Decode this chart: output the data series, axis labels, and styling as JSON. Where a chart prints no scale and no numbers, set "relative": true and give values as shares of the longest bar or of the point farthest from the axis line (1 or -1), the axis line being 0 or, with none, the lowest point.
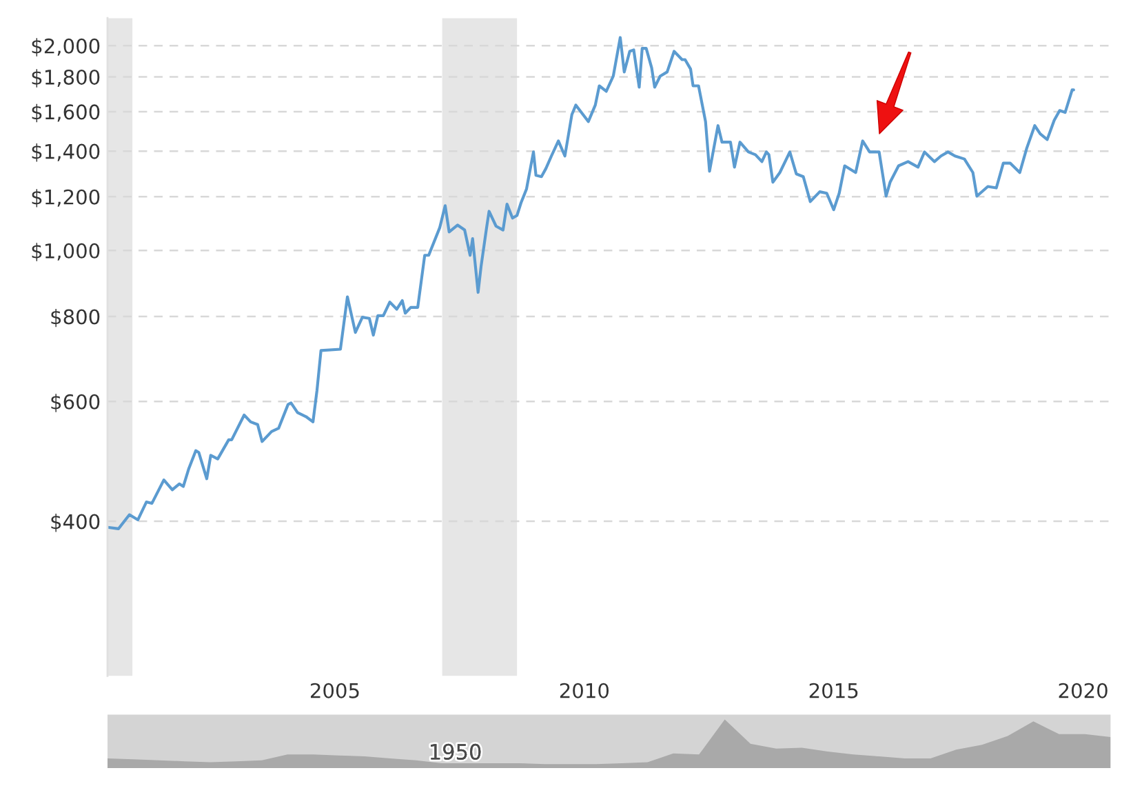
{
  "chart_data": [
    {
      "type": "line",
      "xlim": [
        2000.44,
        2020.55
      ],
      "ylim": [
        237,
        2196
      ],
      "log": "y",
      "grid": "y",
      "line_style": "solid",
      "marker": "none",
      "xticks": [
        2005,
        2010,
        2015,
        2020
      ],
      "yticks": [
        {
          "value": 400,
          "label": "$400"
        },
        {
          "value": 600,
          "label": "$600"
        },
        {
          "value": 800,
          "label": "$800"
        },
        {
          "value": 1000,
          "label": "$1,000"
        },
        {
          "value": 1200,
          "label": "$1,200"
        },
        {
          "value": 1400,
          "label": "$1,400"
        },
        {
          "value": 1600,
          "label": "$1,600"
        },
        {
          "value": 1800,
          "label": "$1,800"
        },
        {
          "value": 2000,
          "label": "$2,000"
        }
      ],
      "bands": [
        {
          "axis": "x",
          "from": 2000.44,
          "to": 2000.94,
          "color": "#e6e6e6"
        },
        {
          "axis": "x",
          "from": 2007.15,
          "to": 2008.65,
          "color": "#e6e6e6"
        }
      ],
      "series": [
        {
          "color": "#5b9bd0",
          "x": [
            2000.44,
            2000.66,
            2000.88,
            2001.05,
            2001.22,
            2001.33,
            2001.57,
            2001.74,
            2001.88,
            2001.96,
            2002.07,
            2002.21,
            2002.27,
            2002.43,
            2002.51,
            2002.65,
            2002.87,
            2002.93,
            2003.18,
            2003.31,
            2003.45,
            2003.54,
            2003.73,
            2003.87,
            2004.06,
            2004.12,
            2004.25,
            2004.42,
            2004.56,
            2004.64,
            2004.72,
            2005.11,
            2005.25,
            2005.41,
            2005.55,
            2005.69,
            2005.77,
            2005.86,
            2005.97,
            2006.1,
            2006.24,
            2006.35,
            2006.41,
            2006.52,
            2006.66,
            2006.8,
            2006.88,
            2007.1,
            2007.21,
            2007.29,
            2007.46,
            2007.6,
            2007.71,
            2007.76,
            2007.87,
            2007.93,
            2008.04,
            2008.09,
            2008.23,
            2008.37,
            2008.45,
            2008.56,
            2008.65,
            2008.73,
            2008.84,
            2008.98,
            2009.03,
            2009.14,
            2009.23,
            2009.34,
            2009.48,
            2009.61,
            2009.75,
            2009.83,
            2010.08,
            2010.22,
            2010.3,
            2010.44,
            2010.58,
            2010.72,
            2010.8,
            2010.91,
            2010.99,
            2011.1,
            2011.16,
            2011.24,
            2011.35,
            2011.41,
            2011.52,
            2011.66,
            2011.8,
            2011.96,
            2012.02,
            2012.13,
            2012.18,
            2012.29,
            2012.43,
            2012.51,
            2012.68,
            2012.76,
            2012.93,
            2013.01,
            2013.12,
            2013.29,
            2013.43,
            2013.56,
            2013.65,
            2013.7,
            2013.78,
            2013.92,
            2014.12,
            2014.25,
            2014.39,
            2014.53,
            2014.72,
            2014.86,
            2015.0,
            2015.11,
            2015.22,
            2015.44,
            2015.58,
            2015.72,
            2015.91,
            2016.05,
            2016.13,
            2016.3,
            2016.49,
            2016.69,
            2016.82,
            2017.02,
            2017.15,
            2017.29,
            2017.43,
            2017.62,
            2017.79,
            2017.87,
            2018.09,
            2018.26,
            2018.4,
            2018.54,
            2018.73,
            2018.87,
            2019.03,
            2019.14,
            2019.28,
            2019.42,
            2019.53,
            2019.64,
            2019.78,
            2019.81
          ],
          "values": [
            392,
            390,
            409,
            402,
            427,
            425,
            460,
            445,
            454,
            450,
            478,
            508,
            505,
            462,
            500,
            494,
            527,
            527,
            573,
            560,
            555,
            524,
            542,
            548,
            594,
            597,
            578,
            570,
            560,
            623,
            713,
            716,
            855,
            758,
            798,
            795,
            751,
            802,
            802,
            840,
            820,
            844,
            809,
            825,
            825,
            984,
            984,
            1080,
            1164,
            1065,
            1090,
            1072,
            984,
            1041,
            868,
            948,
            1080,
            1142,
            1086,
            1072,
            1170,
            1116,
            1126,
            1175,
            1231,
            1396,
            1290,
            1284,
            1320,
            1377,
            1449,
            1377,
            1584,
            1636,
            1547,
            1636,
            1746,
            1714,
            1804,
            2056,
            1830,
            1962,
            1972,
            1738,
            1982,
            1982,
            1856,
            1738,
            1804,
            1830,
            1962,
            1908,
            1908,
            1848,
            1746,
            1746,
            1547,
            1308,
            1526,
            1443,
            1443,
            1326,
            1443,
            1396,
            1383,
            1351,
            1396,
            1383,
            1260,
            1302,
            1396,
            1296,
            1284,
            1180,
            1220,
            1214,
            1148,
            1214,
            1332,
            1302,
            1449,
            1396,
            1396,
            1202,
            1260,
            1332,
            1351,
            1326,
            1396,
            1351,
            1377,
            1396,
            1377,
            1363,
            1302,
            1202,
            1242,
            1236,
            1344,
            1344,
            1302,
            1414,
            1526,
            1484,
            1456,
            1554,
            1606,
            1596,
            1722,
            1722
          ]
        }
      ]
    },
    {
      "type": "area",
      "relative": true,
      "tick_labels": false,
      "annotations": [
        "1950"
      ],
      "categories": [
        null,
        null,
        null,
        null,
        null,
        null,
        null,
        null,
        null,
        null,
        null,
        null,
        null,
        null,
        null,
        null,
        null,
        null,
        null,
        null,
        null,
        null,
        null,
        null,
        null,
        null,
        null,
        null,
        null,
        null,
        null,
        null,
        null,
        null,
        null,
        null,
        null,
        null,
        null,
        null
      ],
      "series": [
        {
          "color": "#a9a9a9",
          "values": [
            0.2,
            0.18,
            0.16,
            0.14,
            0.12,
            0.14,
            0.16,
            0.28,
            0.28,
            0.26,
            0.24,
            0.2,
            0.16,
            0.1,
            0.1,
            0.1,
            0.1,
            0.08,
            0.08,
            0.08,
            0.1,
            0.12,
            0.3,
            0.28,
            1.0,
            0.5,
            0.4,
            0.42,
            0.34,
            0.28,
            0.24,
            0.2,
            0.2,
            0.38,
            0.48,
            0.66,
            0.96,
            0.7,
            0.7,
            0.64
          ]
        }
      ]
    }
  ]
}
